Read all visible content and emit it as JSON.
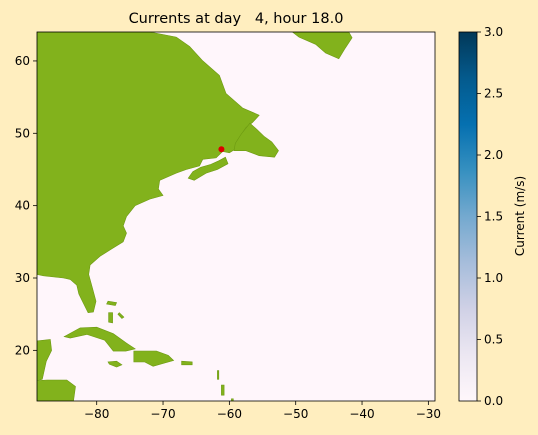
{
  "figure": {
    "background": "#ffeebf",
    "title": "Currents at day   4, hour 18.0"
  },
  "chart_data": {
    "type": "heatmap",
    "title": "Currents at day   4, hour 18.0",
    "xlabel": "",
    "ylabel": "",
    "xlim": [
      -89,
      -29
    ],
    "ylim": [
      13,
      64
    ],
    "xticks": [
      -80,
      -70,
      -60,
      -50,
      -40,
      -30
    ],
    "yticks": [
      20,
      30,
      40,
      50,
      60
    ],
    "xtick_labels": [
      "−80",
      "−70",
      "−60",
      "−50",
      "−40",
      "−30"
    ],
    "ytick_labels": [
      "20",
      "30",
      "40",
      "50",
      "60"
    ],
    "grid": false,
    "ocean_value": 0.0,
    "ocean_color": "#fff6fb",
    "land_color": "#82b21c",
    "land_shade_color": "#6d9a12",
    "marker": {
      "lon": -61.2,
      "lat": 47.8,
      "color": "#dd0000"
    },
    "colorbar": {
      "label": "Current (m/s)",
      "min": 0.0,
      "max": 3.0,
      "ticks": [
        0.0,
        0.5,
        1.0,
        1.5,
        2.0,
        2.5,
        3.0
      ],
      "tick_labels": [
        "0.0",
        "0.5",
        "1.0",
        "1.5",
        "2.0",
        "2.5",
        "3.0"
      ],
      "colormap": "PuBu",
      "stops": [
        "#fff7fb",
        "#ece7f2",
        "#d0d1e6",
        "#a6bddb",
        "#74a9cf",
        "#3690c0",
        "#0570b0",
        "#045a8d",
        "#023858"
      ]
    },
    "land_polygons": [
      {
        "name": "north-america",
        "points": [
          [
            -89,
            64
          ],
          [
            -89,
            30.5
          ],
          [
            -88,
            30.3
          ],
          [
            -85,
            30
          ],
          [
            -84,
            29.8
          ],
          [
            -83,
            29
          ],
          [
            -82.7,
            27.8
          ],
          [
            -82,
            26.5
          ],
          [
            -81.3,
            25.2
          ],
          [
            -80.5,
            25.3
          ],
          [
            -80.1,
            26.8
          ],
          [
            -80.6,
            28.5
          ],
          [
            -81.2,
            30.5
          ],
          [
            -81,
            31.8
          ],
          [
            -79.5,
            33
          ],
          [
            -77.8,
            34
          ],
          [
            -76,
            35
          ],
          [
            -75.5,
            36.2
          ],
          [
            -76,
            37.2
          ],
          [
            -75.5,
            38.5
          ],
          [
            -74.2,
            40
          ],
          [
            -72,
            40.9
          ],
          [
            -70,
            41.4
          ],
          [
            -70.7,
            42.3
          ],
          [
            -70.5,
            43.5
          ],
          [
            -68,
            44.5
          ],
          [
            -66.5,
            45
          ],
          [
            -64.5,
            45.5
          ],
          [
            -64,
            46.4
          ],
          [
            -62,
            46.6
          ],
          [
            -61,
            47.5
          ],
          [
            -60,
            47.3
          ],
          [
            -59.3,
            47.7
          ],
          [
            -58.8,
            49
          ],
          [
            -57.5,
            50.8
          ],
          [
            -56.5,
            51.5
          ],
          [
            -55.5,
            52.5
          ],
          [
            -58,
            53.5
          ],
          [
            -60.5,
            55.5
          ],
          [
            -61.5,
            58
          ],
          [
            -64,
            60
          ],
          [
            -66,
            62
          ],
          [
            -68,
            63.3
          ],
          [
            -72,
            64
          ]
        ]
      },
      {
        "name": "nova-scotia",
        "points": [
          [
            -66.2,
            43.8
          ],
          [
            -65.3,
            43.5
          ],
          [
            -63.5,
            44.5
          ],
          [
            -61.8,
            45
          ],
          [
            -60.2,
            45.8
          ],
          [
            -60.6,
            46.7
          ],
          [
            -61.6,
            46.2
          ],
          [
            -62.8,
            45.7
          ],
          [
            -64.3,
            45.3
          ],
          [
            -65.5,
            44.7
          ]
        ]
      },
      {
        "name": "newfoundland",
        "points": [
          [
            -59.3,
            47.6
          ],
          [
            -57.5,
            47.6
          ],
          [
            -55.5,
            46.9
          ],
          [
            -53.2,
            46.7
          ],
          [
            -52.6,
            47.6
          ],
          [
            -53.6,
            48.8
          ],
          [
            -54.8,
            49.6
          ],
          [
            -55.8,
            50.5
          ],
          [
            -56.9,
            51.4
          ],
          [
            -58.2,
            49.9
          ],
          [
            -59.1,
            48.6
          ]
        ]
      },
      {
        "name": "greenland-tip",
        "points": [
          [
            -50.5,
            64
          ],
          [
            -49.5,
            63.3
          ],
          [
            -47,
            62.3
          ],
          [
            -45.5,
            61.1
          ],
          [
            -43.5,
            60.3
          ],
          [
            -42.5,
            61.8
          ],
          [
            -41.5,
            63.2
          ],
          [
            -42,
            64
          ]
        ]
      },
      {
        "name": "cuba",
        "points": [
          [
            -84.9,
            21.9
          ],
          [
            -82.5,
            23.1
          ],
          [
            -80,
            23.2
          ],
          [
            -77.5,
            22.3
          ],
          [
            -75.5,
            21
          ],
          [
            -74.2,
            20.2
          ],
          [
            -75.6,
            19.9
          ],
          [
            -77.5,
            19.9
          ],
          [
            -78.8,
            21.4
          ],
          [
            -81.5,
            22.2
          ],
          [
            -84,
            21.7
          ]
        ]
      },
      {
        "name": "hispaniola",
        "points": [
          [
            -74.4,
            19.9
          ],
          [
            -72.8,
            19.9
          ],
          [
            -71,
            19.9
          ],
          [
            -69.2,
            19.3
          ],
          [
            -68.4,
            18.6
          ],
          [
            -70,
            18.2
          ],
          [
            -71.5,
            17.8
          ],
          [
            -72.8,
            18.4
          ],
          [
            -74.4,
            18.4
          ]
        ]
      },
      {
        "name": "jamaica",
        "points": [
          [
            -78.3,
            18.4
          ],
          [
            -77,
            18.5
          ],
          [
            -76.2,
            18
          ],
          [
            -77,
            17.7
          ],
          [
            -78.1,
            18.1
          ]
        ]
      },
      {
        "name": "puerto-rico",
        "points": [
          [
            -67.2,
            18.5
          ],
          [
            -65.6,
            18.4
          ],
          [
            -65.6,
            18
          ],
          [
            -67.2,
            18
          ]
        ]
      },
      {
        "name": "mexico-yucatan",
        "points": [
          [
            -89,
            21.3
          ],
          [
            -87,
            21.5
          ],
          [
            -86.8,
            20
          ],
          [
            -87.6,
            18.5
          ],
          [
            -88.2,
            16
          ],
          [
            -89,
            15.8
          ]
        ]
      },
      {
        "name": "central-america",
        "points": [
          [
            -89,
            15.8
          ],
          [
            -87.5,
            15.9
          ],
          [
            -84.5,
            15.9
          ],
          [
            -83.2,
            15
          ],
          [
            -83.5,
            13
          ],
          [
            -89,
            13
          ]
        ]
      },
      {
        "name": "bahamas-1",
        "points": [
          [
            -78.3,
            26.8
          ],
          [
            -77,
            26.6
          ],
          [
            -77.2,
            26.2
          ],
          [
            -78.5,
            26.4
          ]
        ]
      },
      {
        "name": "bahamas-2",
        "points": [
          [
            -78.2,
            25.2
          ],
          [
            -77.6,
            25.2
          ],
          [
            -77.6,
            23.8
          ],
          [
            -78.2,
            23.9
          ]
        ]
      },
      {
        "name": "bahamas-3",
        "points": [
          [
            -76.6,
            25.2
          ],
          [
            -75.9,
            24.6
          ],
          [
            -76.2,
            24.4
          ],
          [
            -76.8,
            25
          ]
        ]
      },
      {
        "name": "lesser-antilles-1",
        "points": [
          [
            -61.8,
            17.2
          ],
          [
            -61.6,
            17.2
          ],
          [
            -61.6,
            16
          ],
          [
            -61.8,
            16
          ]
        ]
      },
      {
        "name": "lesser-antilles-2",
        "points": [
          [
            -61.2,
            15.2
          ],
          [
            -60.8,
            15.2
          ],
          [
            -60.8,
            13.8
          ],
          [
            -61.2,
            13.8
          ]
        ]
      },
      {
        "name": "lesser-antilles-3",
        "points": [
          [
            -59.7,
            13.3
          ],
          [
            -59.4,
            13.3
          ],
          [
            -59.4,
            13
          ],
          [
            -59.7,
            13
          ]
        ]
      }
    ]
  }
}
